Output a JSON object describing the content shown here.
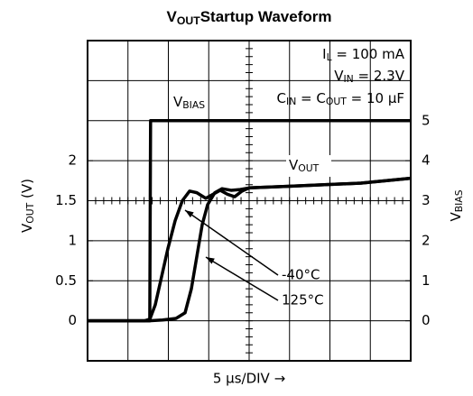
{
  "chart_data": {
    "type": "line",
    "title": [
      "V",
      "OUT",
      "Startup Waveform"
    ],
    "xlabel": "5 µs/DIV →",
    "ylabel": [
      "V",
      "OUT",
      " (V)"
    ],
    "y2label": [
      "V",
      "BIAS"
    ],
    "xlim": [
      0,
      40
    ],
    "ylim": [
      -0.5,
      3.5
    ],
    "yticks": [
      0,
      0.5,
      1,
      1.5,
      2
    ],
    "y2lim": [
      -1,
      7
    ],
    "y2ticks": [
      0,
      1,
      2,
      3,
      4,
      5
    ],
    "grid": true,
    "divisions": {
      "x": 8,
      "y": 8
    },
    "series": [
      {
        "name": [
          "V",
          "BIAS"
        ],
        "color": "#000000",
        "axis": "y2",
        "x": [
          0,
          7.7,
          7.8,
          40
        ],
        "values": [
          0,
          0,
          5,
          5
        ]
      },
      {
        "name": [
          "V",
          "OUT"
        ],
        "label": "-40°C",
        "color": "#000000",
        "x": [
          0,
          7.04,
          7.71,
          8.38,
          9.05,
          9.94,
          10.84,
          11.73,
          12.63,
          13.52,
          14.64,
          15.53,
          16.42,
          17.32,
          18.21,
          19.11,
          20.0,
          24.92,
          33.85,
          40
        ],
        "values": [
          0,
          0,
          0.02,
          0.2,
          0.5,
          0.9,
          1.25,
          1.5,
          1.62,
          1.6,
          1.53,
          1.58,
          1.63,
          1.58,
          1.55,
          1.62,
          1.66,
          1.68,
          1.72,
          1.78
        ]
      },
      {
        "name": [
          "V",
          "OUT"
        ],
        "label": "125°C",
        "color": "#000000",
        "x": [
          0,
          7.6,
          9.27,
          10.95,
          12.07,
          12.85,
          13.52,
          14.19,
          14.86,
          15.75,
          16.65,
          17.77,
          18.88,
          20.0,
          24.92,
          33.85,
          40
        ],
        "values": [
          0,
          0,
          0.01,
          0.03,
          0.1,
          0.4,
          0.8,
          1.2,
          1.45,
          1.6,
          1.65,
          1.63,
          1.64,
          1.66,
          1.68,
          1.72,
          1.78
        ]
      }
    ],
    "annotations": [
      [
        "I",
        "L",
        " = 100 mA"
      ],
      [
        "V",
        "IN",
        " = 2.3V"
      ],
      [
        "C",
        "IN",
        " = C",
        "OUT",
        " = 10 µF"
      ]
    ]
  }
}
